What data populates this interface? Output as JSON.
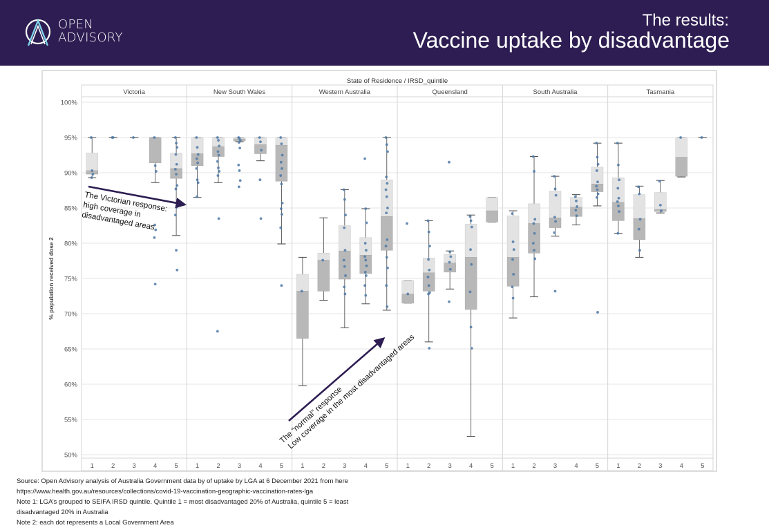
{
  "header": {
    "logo_line1": "OPEN",
    "logo_line2": "ADVISORY",
    "title_line1": "The results:",
    "title_line2": "Vaccine uptake by disadvantage",
    "background": "#2d1d52"
  },
  "chart_data": {
    "type": "box",
    "title": "State of Residence / IRSD_quintile",
    "ylabel": "% population received dose 2",
    "ylim": [
      50,
      100
    ],
    "yticks": [
      "100%",
      "95%",
      "90%",
      "85%",
      "80%",
      "75%",
      "70%",
      "65%",
      "60%",
      "55%",
      "50%"
    ],
    "ytick_values": [
      100,
      95,
      90,
      85,
      80,
      75,
      70,
      65,
      60,
      55,
      50
    ],
    "quintiles": [
      "1",
      "2",
      "3",
      "4",
      "5"
    ],
    "colors": {
      "light_box": "#e3e3e3",
      "dark_box": "#b8b8b8",
      "dot": "#4e79a7",
      "whisker": "#555555",
      "arrow": "#2d1d52"
    },
    "states": [
      {
        "name": "Victoria",
        "boxes": [
          {
            "q": "1",
            "min": 89.3,
            "q1": 89.8,
            "median": 90.3,
            "q3": 92.8,
            "max": 95.0,
            "points": [
              95.0,
              90.3,
              89.8,
              89.3
            ]
          },
          {
            "q": "2",
            "min": 95.0,
            "q1": 95.0,
            "median": 95.0,
            "q3": 95.0,
            "max": 95.0,
            "points": [
              95.0,
              95.0
            ]
          },
          {
            "q": "3",
            "min": 95.0,
            "q1": 95.0,
            "median": 95.0,
            "q3": 95.0,
            "max": 95.0,
            "points": [
              95.0
            ]
          },
          {
            "q": "4",
            "min": 88.6,
            "q1": 91.4,
            "median": 95.0,
            "q3": 95.0,
            "max": 95.0,
            "points": [
              95.0,
              91.0,
              90.2,
              82.6,
              81.9,
              80.8,
              74.2
            ]
          },
          {
            "q": "5",
            "min": 81.1,
            "q1": 89.2,
            "median": 90.6,
            "q3": 92.8,
            "max": 95.0,
            "points": [
              95.0,
              94.2,
              93.6,
              92.6,
              91.2,
              90.5,
              89.8,
              88.2,
              87.7,
              85.1,
              84.0,
              79.0,
              76.2
            ]
          }
        ]
      },
      {
        "name": "New South Wales",
        "boxes": [
          {
            "q": "1",
            "min": 86.5,
            "q1": 91.0,
            "median": 92.7,
            "q3": 95.0,
            "max": 95.0,
            "points": [
              95.0,
              93.6,
              92.6,
              92.0,
              91.4,
              90.6,
              89.0,
              88.6,
              86.6
            ]
          },
          {
            "q": "2",
            "min": 88.6,
            "q1": 92.3,
            "median": 93.7,
            "q3": 95.0,
            "max": 95.0,
            "points": [
              95.0,
              94.6,
              93.8,
              93.0,
              92.5,
              91.6,
              90.7,
              90.2,
              89.6,
              83.5,
              67.5
            ]
          },
          {
            "q": "3",
            "min": 94.4,
            "q1": 94.5,
            "median": 94.8,
            "q3": 95.0,
            "max": 95.0,
            "points": [
              95.0,
              94.9,
              94.6,
              94.3,
              93.5,
              91.1,
              90.3,
              88.9,
              88.0
            ]
          },
          {
            "q": "4",
            "min": 91.7,
            "q1": 92.7,
            "median": 94.0,
            "q3": 95.0,
            "max": 95.0,
            "points": [
              95.0,
              94.4,
              93.2,
              89.0,
              83.5
            ]
          },
          {
            "q": "5",
            "min": 79.9,
            "q1": 88.8,
            "median": 93.9,
            "q3": 95.0,
            "max": 95.0,
            "points": [
              95.0,
              94.1,
              92.5,
              91.5,
              90.6,
              89.6,
              88.4,
              85.7,
              84.9,
              84.1,
              82.2,
              74.0
            ]
          }
        ]
      },
      {
        "name": "Western Australia",
        "boxes": [
          {
            "q": "1",
            "min": 59.8,
            "q1": 66.5,
            "median": 73.2,
            "q3": 75.6,
            "max": 78.0,
            "points": [
              73.2
            ]
          },
          {
            "q": "2",
            "min": 71.9,
            "q1": 73.2,
            "median": 77.6,
            "q3": 78.6,
            "max": 83.6,
            "points": [
              77.6
            ]
          },
          {
            "q": "3",
            "min": 68.0,
            "q1": 74.9,
            "median": 78.9,
            "q3": 82.5,
            "max": 87.6,
            "points": [
              87.6,
              86.2,
              84.0,
              82.2,
              79.0,
              77.6,
              76.7,
              75.4,
              73.8,
              72.8
            ]
          },
          {
            "q": "4",
            "min": 71.4,
            "q1": 75.7,
            "median": 78.3,
            "q3": 80.8,
            "max": 84.9,
            "points": [
              92.0,
              84.9,
              82.9,
              80.0,
              79.0,
              78.1,
              77.6,
              76.8,
              75.9,
              75.4,
              74.0,
              72.6
            ]
          },
          {
            "q": "5",
            "min": 70.5,
            "q1": 79.0,
            "median": 83.8,
            "q3": 89.0,
            "max": 95.0,
            "points": [
              95.0,
              94.0,
              93.0,
              89.4,
              88.5,
              87.6,
              86.6,
              85.0,
              84.3,
              80.5,
              79.6,
              78.0,
              76.5,
              74.0,
              71.0
            ]
          }
        ]
      },
      {
        "name": "Queensland",
        "boxes": [
          {
            "q": "1",
            "min": 71.5,
            "q1": 71.5,
            "median": 72.8,
            "q3": 74.7,
            "max": 74.7,
            "points": [
              82.8,
              72.8
            ]
          },
          {
            "q": "2",
            "min": 66.0,
            "q1": 73.2,
            "median": 75.8,
            "q3": 77.9,
            "max": 83.2,
            "points": [
              83.2,
              81.6,
              79.6,
              77.7,
              76.2,
              75.2,
              74.0,
              73.0,
              72.8,
              65.1
            ]
          },
          {
            "q": "3",
            "min": 73.5,
            "q1": 75.9,
            "median": 77.2,
            "q3": 78.4,
            "max": 78.9,
            "points": [
              91.5,
              78.8,
              78.1,
              77.3,
              76.3,
              71.7
            ]
          },
          {
            "q": "4",
            "min": 52.6,
            "q1": 70.6,
            "median": 78.0,
            "q3": 82.7,
            "max": 84.0,
            "points": [
              83.8,
              83.2,
              82.3,
              79.1,
              77.0,
              73.1,
              68.1,
              65.1
            ]
          },
          {
            "q": "5",
            "min": 83.0,
            "q1": 83.0,
            "median": 84.6,
            "q3": 86.5,
            "max": 86.5,
            "points": []
          }
        ]
      },
      {
        "name": "South Australia",
        "boxes": [
          {
            "q": "1",
            "min": 69.4,
            "q1": 73.9,
            "median": 78.0,
            "q3": 83.9,
            "max": 84.6,
            "points": [
              84.2,
              80.2,
              79.1,
              77.7,
              75.6,
              73.8,
              72.2
            ]
          },
          {
            "q": "2",
            "min": 72.4,
            "q1": 78.6,
            "median": 82.8,
            "q3": 85.6,
            "max": 92.3,
            "points": [
              92.3,
              90.2,
              83.4,
              82.8,
              81.4,
              80.0,
              79.0,
              77.8
            ]
          },
          {
            "q": "3",
            "min": 81.0,
            "q1": 82.2,
            "median": 83.6,
            "q3": 87.4,
            "max": 89.5,
            "points": [
              89.5,
              87.7,
              86.8,
              83.7,
              83.1,
              81.5,
              73.2
            ]
          },
          {
            "q": "4",
            "min": 82.6,
            "q1": 83.8,
            "median": 85.1,
            "q3": 86.5,
            "max": 86.9,
            "points": [
              86.6,
              86.0,
              85.2,
              84.7,
              83.9
            ]
          },
          {
            "q": "5",
            "min": 85.3,
            "q1": 87.3,
            "median": 88.4,
            "q3": 90.8,
            "max": 94.2,
            "points": [
              94.2,
              92.2,
              91.2,
              90.3,
              88.7,
              88.1,
              87.6,
              87.0,
              86.5,
              70.2
            ]
          }
        ]
      },
      {
        "name": "Tasmania",
        "boxes": [
          {
            "q": "1",
            "min": 81.4,
            "q1": 83.2,
            "median": 85.8,
            "q3": 89.3,
            "max": 94.2,
            "points": [
              94.2,
              91.1,
              89.0,
              87.8,
              86.4,
              85.9,
              85.3,
              84.5,
              81.4
            ]
          },
          {
            "q": "2",
            "min": 78.0,
            "q1": 80.5,
            "median": 83.5,
            "q3": 86.9,
            "max": 88.1,
            "points": [
              88.0,
              87.0,
              83.4,
              82.0,
              79.0
            ]
          },
          {
            "q": "3",
            "min": 84.3,
            "q1": 84.5,
            "median": 84.8,
            "q3": 87.2,
            "max": 88.9,
            "points": [
              88.8,
              85.4,
              84.6
            ]
          },
          {
            "q": "4",
            "min": 89.4,
            "q1": 89.5,
            "median": 92.2,
            "q3": 95.0,
            "max": 95.0,
            "points": [
              95.0
            ]
          },
          {
            "q": "5",
            "min": 95.0,
            "q1": 95.0,
            "median": 95.0,
            "q3": 95.0,
            "max": 95.0,
            "points": [
              95.0
            ]
          }
        ]
      }
    ],
    "annotations": [
      {
        "id": "victoria",
        "lines": [
          "The Victorian response:",
          "high coverage in",
          "disadvantaged areas"
        ]
      },
      {
        "id": "normal",
        "lines": [
          "The “normal” response",
          "Low coverage in the most disadvantaged areas"
        ]
      }
    ]
  },
  "notes": [
    "Source: Open Advisory analysis of Australia Government data by of uptake by LGA at 6 December 2021 from here",
    "https://www.health.gov.au/resources/collections/covid-19-vaccination-geographic-vaccination-rates-lga",
    "Note 1: LGA’s grouped to SEIFA IRSD quintile. Quintile 1 = most disadvantaged 20% of Australia, quintile 5 = least",
    "disadvantaged 20% in Australia",
    "Note 2: each dot represents a Local Government Area"
  ]
}
